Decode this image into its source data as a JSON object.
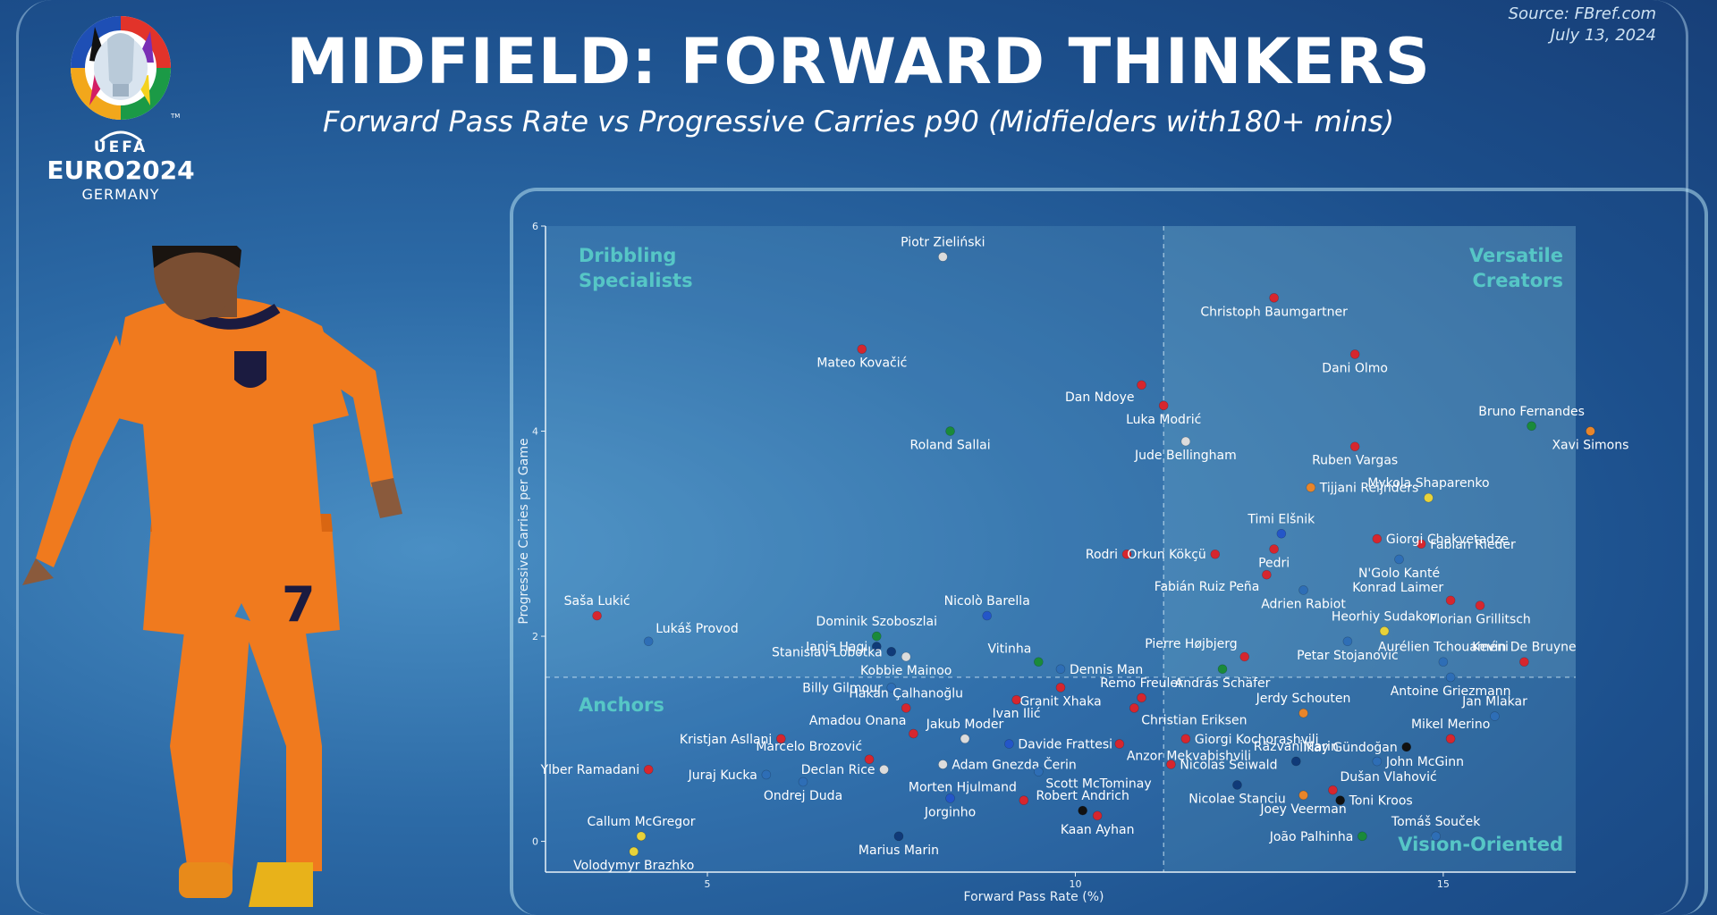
{
  "header": {
    "title": "MIDFIELD: FORWARD THINKERS",
    "subtitle": "Forward Pass Rate vs Progressive Carries p90 (Midfielders with180+ mins)",
    "source": "Source: FBref.com",
    "date": "July 13, 2024"
  },
  "logo": {
    "org": "UEFA",
    "event": "EURO2024",
    "country": "GERMANY",
    "trademark": "TM"
  },
  "player": {
    "shirt_number": "7",
    "kit_color": "#f07a1e"
  },
  "chart_data": {
    "type": "scatter",
    "title": "Forward Pass Rate vs Progressive Carries p90 (Midfielders with180+ mins)",
    "xlabel": "Forward Pass Rate (%)",
    "ylabel": "Progressive Carries per Game",
    "xlim": [
      2.8,
      16.8
    ],
    "ylim": [
      -0.3,
      6.0
    ],
    "xticks": [
      5,
      10,
      15
    ],
    "yticks": [
      0,
      2,
      4,
      6
    ],
    "divider_x": 11.2,
    "divider_y": 1.6,
    "grid": false,
    "quadrants": {
      "top_left": [
        "Dribbling",
        "Specialists"
      ],
      "top_right": [
        "Versatile",
        "Creators"
      ],
      "bottom_left": [
        "Anchors"
      ],
      "bottom_right": [
        "Vision-Oriented"
      ]
    },
    "colors": {
      "red": "#d6262e",
      "blue": "#2456c8",
      "navy": "#103a78",
      "steel": "#2e6eb6",
      "green": "#1a8a3a",
      "orange": "#e8852a",
      "yellow": "#e8d23a",
      "white": "#dcdcdc",
      "black": "#111111",
      "quadrant_text": "#56c6c6"
    },
    "points": [
      {
        "name": "Piotr Zieliński",
        "x": 8.2,
        "y": 5.7,
        "color": "white",
        "label": "above"
      },
      {
        "name": "Christoph Baumgartner",
        "x": 12.7,
        "y": 5.3,
        "color": "red",
        "label": "below"
      },
      {
        "name": "Mateo Kovačić",
        "x": 7.1,
        "y": 4.8,
        "color": "red",
        "label": "below"
      },
      {
        "name": "Dani Olmo",
        "x": 13.8,
        "y": 4.75,
        "color": "red",
        "label": "below"
      },
      {
        "name": "Dan Ndoye",
        "x": 10.9,
        "y": 4.45,
        "color": "red",
        "label": "below-left"
      },
      {
        "name": "Luka Modrić",
        "x": 11.2,
        "y": 4.25,
        "color": "red",
        "label": "below"
      },
      {
        "name": "Bruno Fernandes",
        "x": 16.2,
        "y": 4.05,
        "color": "green",
        "label": "above"
      },
      {
        "name": "Xavi Simons",
        "x": 17.0,
        "y": 4.0,
        "color": "orange",
        "label": "below"
      },
      {
        "name": "Roland Sallai",
        "x": 8.3,
        "y": 4.0,
        "color": "green",
        "label": "below"
      },
      {
        "name": "Jude Bellingham",
        "x": 11.5,
        "y": 3.9,
        "color": "white",
        "label": "below"
      },
      {
        "name": "Ruben Vargas",
        "x": 13.8,
        "y": 3.85,
        "color": "red",
        "label": "below"
      },
      {
        "name": "Tijjani Reijnders",
        "x": 13.2,
        "y": 3.45,
        "color": "orange",
        "label": "right"
      },
      {
        "name": "Mykola Shaparenko",
        "x": 14.8,
        "y": 3.35,
        "color": "yellow",
        "label": "above"
      },
      {
        "name": "Timi Elšnik",
        "x": 12.8,
        "y": 3.0,
        "color": "blue",
        "label": "above"
      },
      {
        "name": "Fabian Rieder",
        "x": 14.7,
        "y": 2.9,
        "color": "red",
        "label": "right"
      },
      {
        "name": "Giorgi Chakvetadze",
        "x": 14.1,
        "y": 2.95,
        "color": "red",
        "label": "right"
      },
      {
        "name": "Rodri",
        "x": 10.7,
        "y": 2.8,
        "color": "red",
        "label": "left"
      },
      {
        "name": "Orkun Kökçü",
        "x": 11.9,
        "y": 2.8,
        "color": "red",
        "label": "left"
      },
      {
        "name": "Pedri",
        "x": 12.7,
        "y": 2.85,
        "color": "red",
        "label": "below"
      },
      {
        "name": "N'Golo Kanté",
        "x": 14.4,
        "y": 2.75,
        "color": "steel",
        "label": "below"
      },
      {
        "name": "Fabián Ruiz Peña",
        "x": 12.6,
        "y": 2.6,
        "color": "red",
        "label": "below-left"
      },
      {
        "name": "Adrien Rabiot",
        "x": 13.1,
        "y": 2.45,
        "color": "steel",
        "label": "below"
      },
      {
        "name": "Konrad Laimer",
        "x": 15.1,
        "y": 2.35,
        "color": "red",
        "label": "above-left"
      },
      {
        "name": "Florian Grillitsch",
        "x": 15.5,
        "y": 2.3,
        "color": "red",
        "label": "below"
      },
      {
        "name": "Saša Lukić",
        "x": 3.5,
        "y": 2.2,
        "color": "red",
        "label": "above"
      },
      {
        "name": "Nicolò Barella",
        "x": 8.8,
        "y": 2.2,
        "color": "blue",
        "label": "above"
      },
      {
        "name": "Heorhiy Sudakov",
        "x": 14.2,
        "y": 2.05,
        "color": "yellow",
        "label": "above"
      },
      {
        "name": "Dominik Szoboszlai",
        "x": 7.3,
        "y": 2.0,
        "color": "green",
        "label": "above"
      },
      {
        "name": "Petar Stojanović",
        "x": 13.7,
        "y": 1.95,
        "color": "steel",
        "label": "below"
      },
      {
        "name": "Lukáš Provod",
        "x": 4.2,
        "y": 1.95,
        "color": "steel",
        "label": "above-right"
      },
      {
        "name": "Ianis Hagi",
        "x": 7.3,
        "y": 1.9,
        "color": "navy",
        "label": "left"
      },
      {
        "name": "Kobbie Mainoo",
        "x": 7.7,
        "y": 1.8,
        "color": "white",
        "label": "below"
      },
      {
        "name": "Stanislav Lobotka",
        "x": 7.5,
        "y": 1.85,
        "color": "navy",
        "label": "left"
      },
      {
        "name": "Pierre Højbjerg",
        "x": 12.3,
        "y": 1.8,
        "color": "red",
        "label": "above-left"
      },
      {
        "name": "Aurélien Tchouaméni",
        "x": 15.0,
        "y": 1.75,
        "color": "steel",
        "label": "above"
      },
      {
        "name": "Kevin De Bruyne",
        "x": 16.1,
        "y": 1.75,
        "color": "red",
        "label": "above"
      },
      {
        "name": "Vitinha",
        "x": 9.5,
        "y": 1.75,
        "color": "green",
        "label": "above-left"
      },
      {
        "name": "Dennis Man",
        "x": 9.8,
        "y": 1.68,
        "color": "steel",
        "label": "right"
      },
      {
        "name": "András Schäfer",
        "x": 12.0,
        "y": 1.68,
        "color": "green",
        "label": "below"
      },
      {
        "name": "Antoine Griezmann",
        "x": 15.1,
        "y": 1.6,
        "color": "steel",
        "label": "below"
      },
      {
        "name": "Billy Gilmour",
        "x": 7.5,
        "y": 1.5,
        "color": "steel",
        "label": "left"
      },
      {
        "name": "Granit Xhaka",
        "x": 9.8,
        "y": 1.5,
        "color": "red",
        "label": "below"
      },
      {
        "name": "Remo Freuler",
        "x": 10.9,
        "y": 1.4,
        "color": "red",
        "label": "above"
      },
      {
        "name": "Hakan Çalhanoğlu",
        "x": 7.7,
        "y": 1.3,
        "color": "red",
        "label": "above"
      },
      {
        "name": "Ivan Ilić",
        "x": 9.2,
        "y": 1.38,
        "color": "red",
        "label": "below"
      },
      {
        "name": "Christian Eriksen",
        "x": 10.8,
        "y": 1.3,
        "color": "red",
        "label": "below-right"
      },
      {
        "name": "Jerdy Schouten",
        "x": 13.1,
        "y": 1.25,
        "color": "orange",
        "label": "above"
      },
      {
        "name": "Jan Mlakar",
        "x": 15.7,
        "y": 1.22,
        "color": "steel",
        "label": "above"
      },
      {
        "name": "Amadou Onana",
        "x": 7.8,
        "y": 1.05,
        "color": "red",
        "label": "above-left"
      },
      {
        "name": "Jakub Moder",
        "x": 8.5,
        "y": 1.0,
        "color": "white",
        "label": "above"
      },
      {
        "name": "Davide Frattesi",
        "x": 9.1,
        "y": 0.95,
        "color": "blue",
        "label": "right"
      },
      {
        "name": "Giorgi Kochorashvili",
        "x": 11.5,
        "y": 1.0,
        "color": "red",
        "label": "right"
      },
      {
        "name": "Mikel Merino",
        "x": 15.1,
        "y": 1.0,
        "color": "red",
        "label": "above"
      },
      {
        "name": "İlkay Gündoğan",
        "x": 14.5,
        "y": 0.92,
        "color": "black",
        "label": "left"
      },
      {
        "name": "Kristjan Asllani",
        "x": 6.0,
        "y": 1.0,
        "color": "red",
        "label": "left"
      },
      {
        "name": "Anzor Mekvabishvili",
        "x": 10.6,
        "y": 0.95,
        "color": "red",
        "label": "below-right"
      },
      {
        "name": "Marcelo Brozović",
        "x": 7.2,
        "y": 0.8,
        "color": "red",
        "label": "above-left"
      },
      {
        "name": "Adam Gnezda Čerin",
        "x": 8.2,
        "y": 0.75,
        "color": "white",
        "label": "right"
      },
      {
        "name": "Răzvan Marin",
        "x": 13.0,
        "y": 0.78,
        "color": "navy",
        "label": "above"
      },
      {
        "name": "John McGinn",
        "x": 14.1,
        "y": 0.78,
        "color": "steel",
        "label": "right"
      },
      {
        "name": "Ylber Ramadani",
        "x": 4.2,
        "y": 0.7,
        "color": "red",
        "label": "left"
      },
      {
        "name": "Declan Rice",
        "x": 7.4,
        "y": 0.7,
        "color": "white",
        "label": "left"
      },
      {
        "name": "Scott McTominay",
        "x": 9.5,
        "y": 0.68,
        "color": "steel",
        "label": "below-right"
      },
      {
        "name": "Nicolas Seiwald",
        "x": 11.3,
        "y": 0.75,
        "color": "red",
        "label": "right"
      },
      {
        "name": "Juraj Kucka",
        "x": 5.8,
        "y": 0.65,
        "color": "steel",
        "label": "left"
      },
      {
        "name": "Ondrej Duda",
        "x": 6.3,
        "y": 0.58,
        "color": "steel",
        "label": "below"
      },
      {
        "name": "Morten Hjulmand",
        "x": 9.3,
        "y": 0.4,
        "color": "red",
        "label": "above-left"
      },
      {
        "name": "Nicolae Stanciu",
        "x": 12.2,
        "y": 0.55,
        "color": "navy",
        "label": "below"
      },
      {
        "name": "Dušan Vlahović",
        "x": 13.5,
        "y": 0.5,
        "color": "red",
        "label": "above-right"
      },
      {
        "name": "Joey Veerman",
        "x": 13.1,
        "y": 0.45,
        "color": "orange",
        "label": "below"
      },
      {
        "name": "Toni Kroos",
        "x": 13.6,
        "y": 0.4,
        "color": "black",
        "label": "right"
      },
      {
        "name": "Jorginho",
        "x": 8.3,
        "y": 0.42,
        "color": "blue",
        "label": "below"
      },
      {
        "name": "Robert Andrich",
        "x": 10.1,
        "y": 0.3,
        "color": "black",
        "label": "above"
      },
      {
        "name": "Kaan Ayhan",
        "x": 10.3,
        "y": 0.25,
        "color": "red",
        "label": "below"
      },
      {
        "name": "Callum McGregor",
        "x": 4.1,
        "y": 0.05,
        "color": "yellow",
        "label": "above"
      },
      {
        "name": "Volodymyr Brazhko",
        "x": 4.0,
        "y": -0.1,
        "color": "yellow",
        "label": "below"
      },
      {
        "name": "Marius Marin",
        "x": 7.6,
        "y": 0.05,
        "color": "navy",
        "label": "below"
      },
      {
        "name": "João Palhinha",
        "x": 13.9,
        "y": 0.05,
        "color": "green",
        "label": "left"
      },
      {
        "name": "Tomáš Souček",
        "x": 14.9,
        "y": 0.05,
        "color": "steel",
        "label": "above"
      }
    ]
  }
}
